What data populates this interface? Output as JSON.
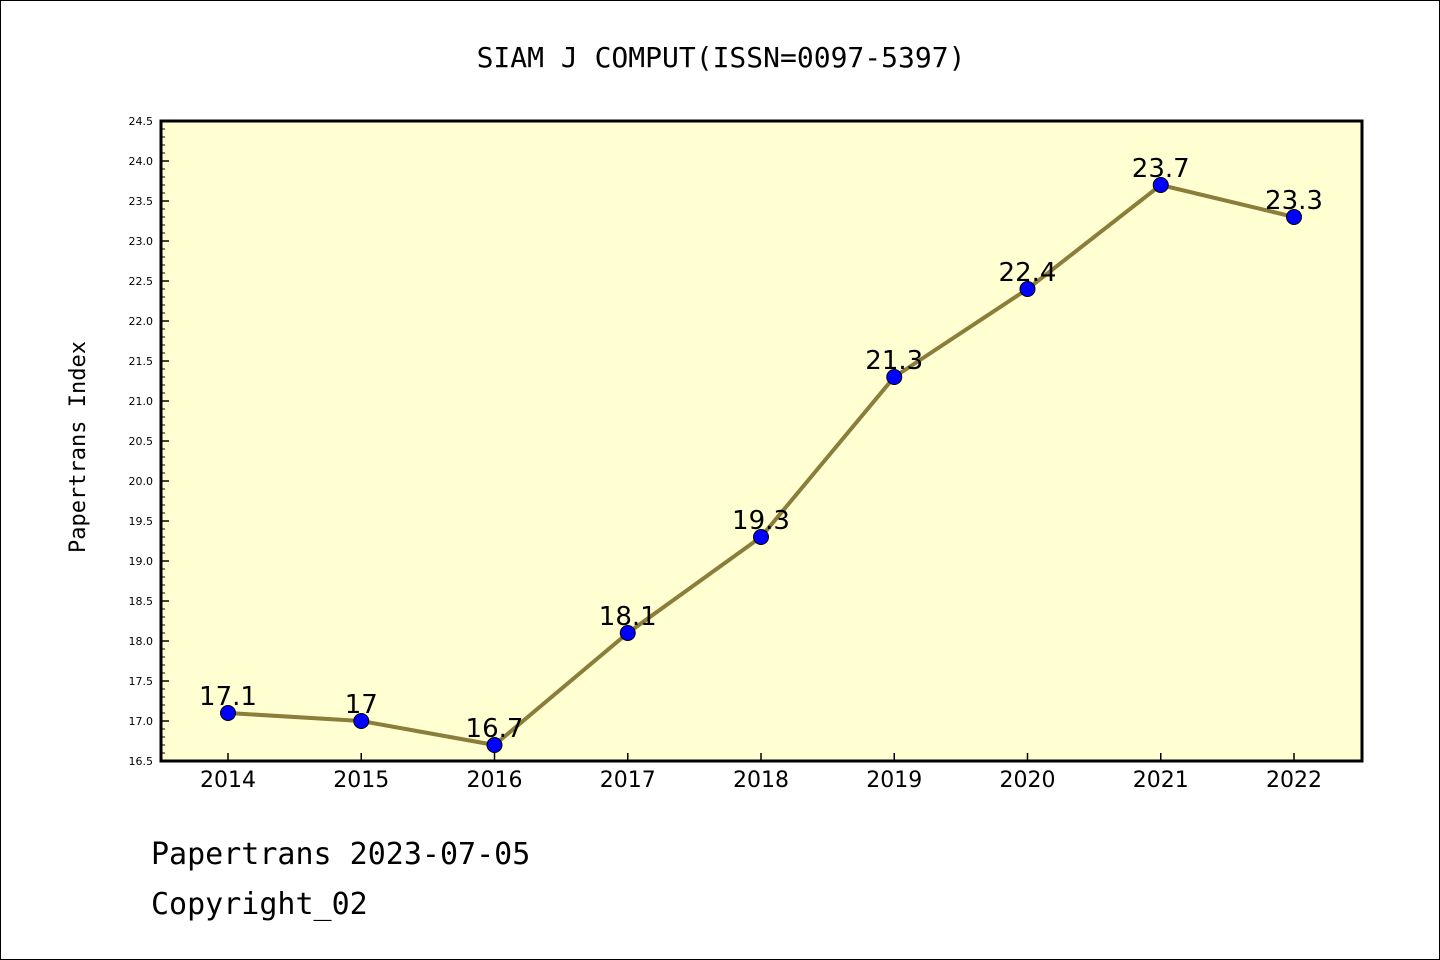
{
  "chart_data": {
    "type": "line",
    "title": "SIAM J COMPUT(ISSN=0097-5397)",
    "xlabel": "",
    "ylabel": "Papertrans Index",
    "categories": [
      "2014",
      "2015",
      "2016",
      "2017",
      "2018",
      "2019",
      "2020",
      "2021",
      "2022"
    ],
    "series": [
      {
        "values": [
          17.1,
          17.0,
          16.7,
          18.1,
          19.3,
          21.3,
          22.4,
          23.7,
          23.3
        ],
        "labels": [
          "17.1",
          "17",
          "16.7",
          "18.1",
          "19.3",
          "21.3",
          "22.4",
          "23.7",
          "23.3"
        ],
        "line_color": "#8b7d3a",
        "marker_color": "#0000ff"
      }
    ],
    "ylim": [
      16.5,
      24.5
    ],
    "yticks": [
      "16.5",
      "17.0",
      "17.5",
      "18.0",
      "18.5",
      "19.0",
      "19.5",
      "20.0",
      "20.5",
      "21.0",
      "21.5",
      "22.0",
      "22.5",
      "23.0",
      "23.5",
      "24.0",
      "24.5"
    ],
    "plot_background": "#ffffd2",
    "grid": false,
    "legend": "none"
  },
  "footer": {
    "date_line": "Papertrans 2023-07-05",
    "copyright": "Copyright_02"
  }
}
